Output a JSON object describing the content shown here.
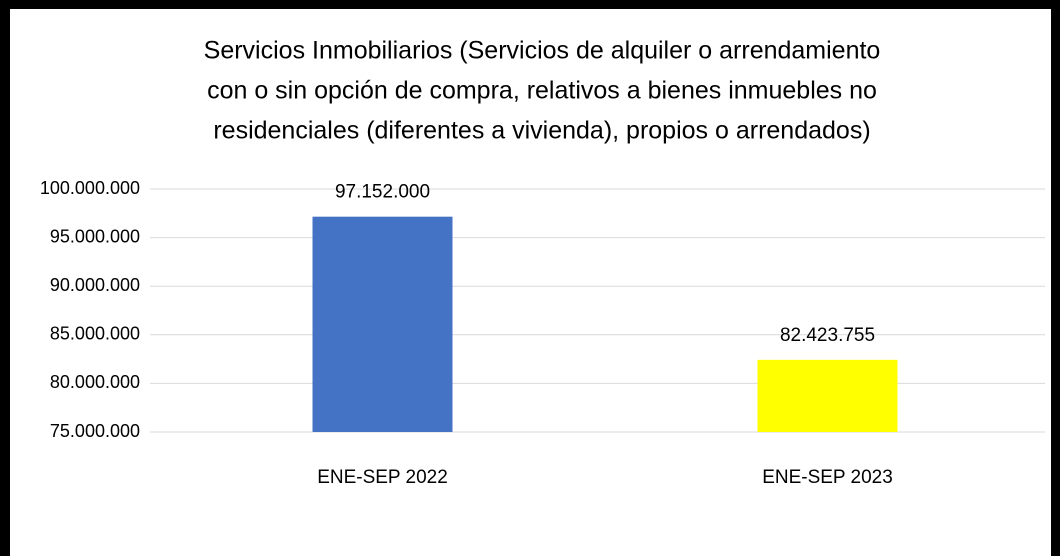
{
  "chart_data": {
    "type": "bar",
    "title": [
      "Servicios Inmobiliarios (Servicios de alquiler o arrendamiento",
      "con o sin opción de compra, relativos a bienes inmuebles no",
      "residenciales (diferentes a vivienda), propios o arrendados)"
    ],
    "categories": [
      "ENE-SEP 2022",
      "ENE-SEP 2023"
    ],
    "values": [
      97152000,
      82423755
    ],
    "value_labels": [
      "97.152.000",
      "82.423.755"
    ],
    "colors": [
      "#4472c4",
      "#ffff00"
    ],
    "ylim": [
      75000000,
      100000000
    ],
    "yticks": [
      {
        "value": 75000000,
        "label": "75.000.000"
      },
      {
        "value": 80000000,
        "label": "80.000.000"
      },
      {
        "value": 85000000,
        "label": "85.000.000"
      },
      {
        "value": 90000000,
        "label": "90.000.000"
      },
      {
        "value": 95000000,
        "label": "95.000.000"
      },
      {
        "value": 100000000,
        "label": "100.000.000"
      }
    ],
    "grid": true
  }
}
